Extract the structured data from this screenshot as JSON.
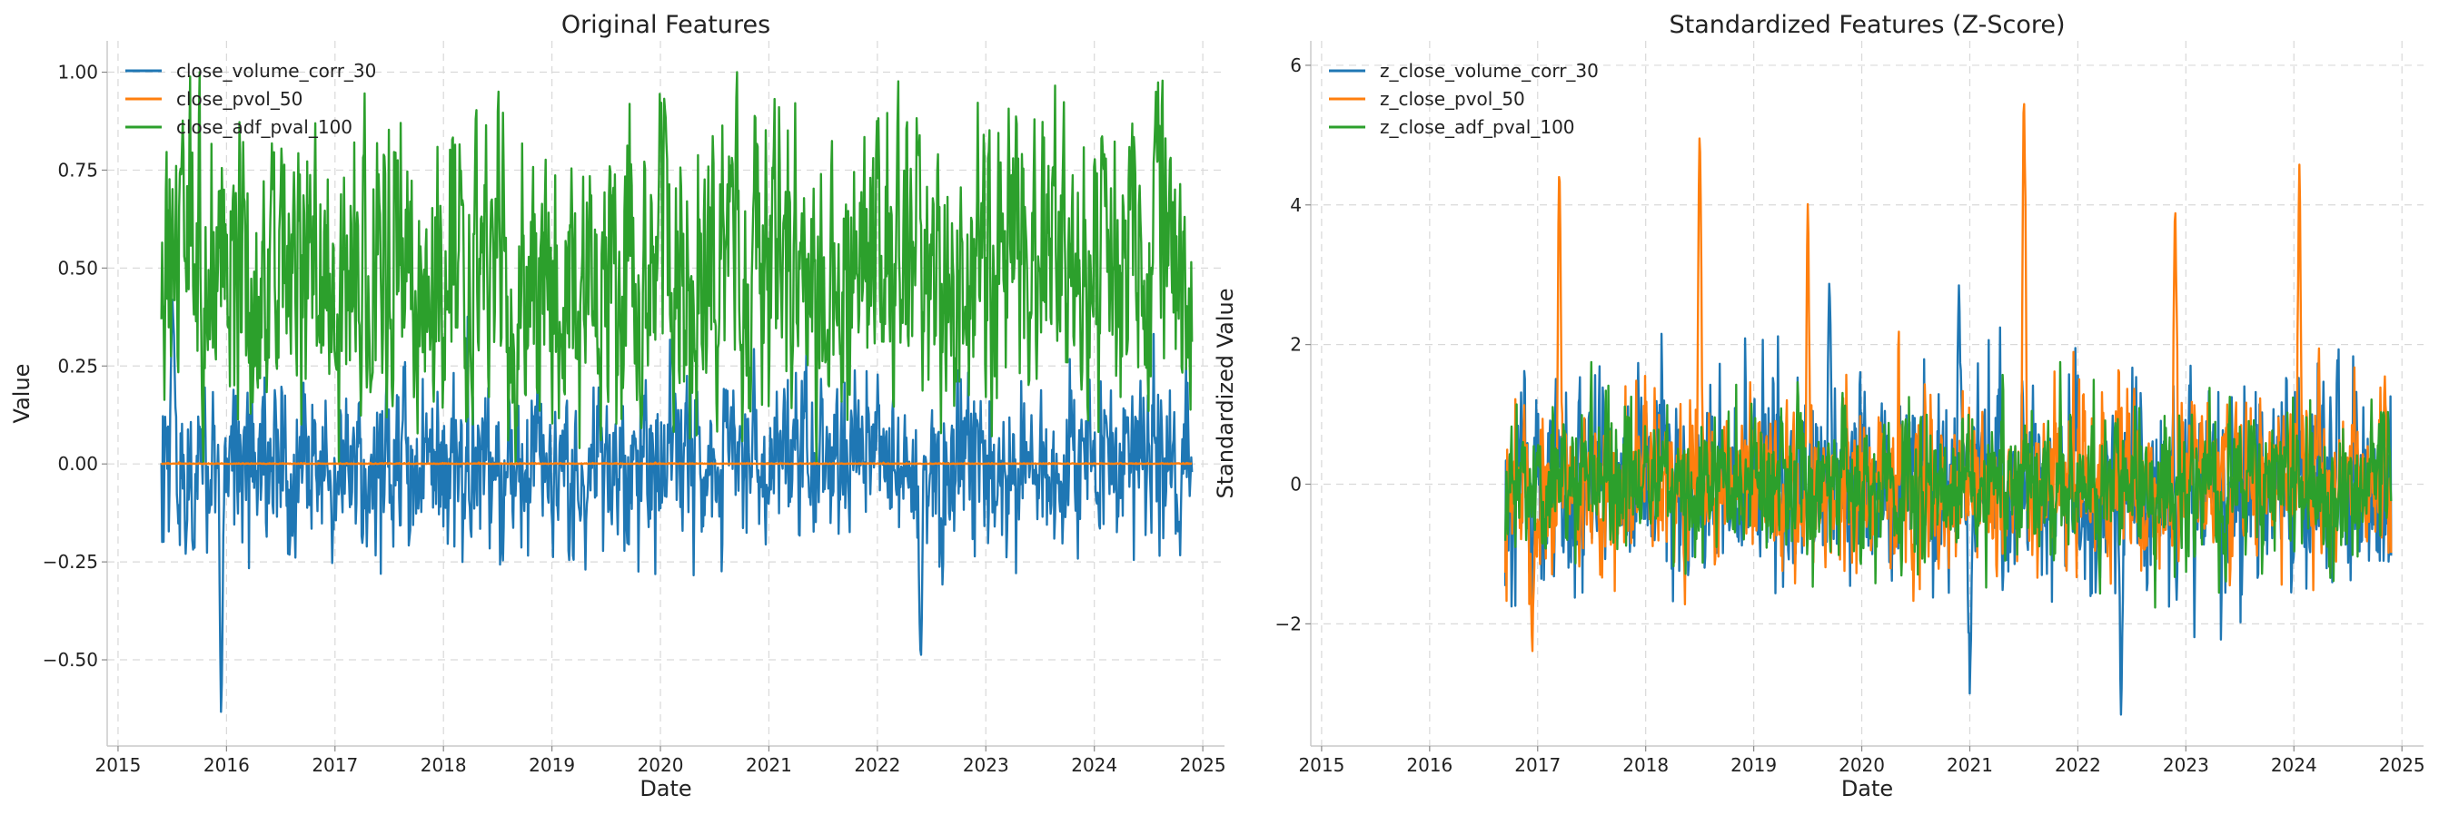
{
  "chart_data": [
    {
      "type": "line",
      "title": "Original Features",
      "xlabel": "Date",
      "ylabel": "Value",
      "xlim": [
        2014.9,
        2025.2
      ],
      "ylim": [
        -0.72,
        1.08
      ],
      "x_ticks": [
        2015,
        2016,
        2017,
        2018,
        2019,
        2020,
        2021,
        2022,
        2023,
        2024,
        2025
      ],
      "x_tick_labels": [
        "2015",
        "2016",
        "2017",
        "2018",
        "2019",
        "2020",
        "2021",
        "2022",
        "2023",
        "2024",
        "2025"
      ],
      "y_ticks": [
        -0.5,
        -0.25,
        0.0,
        0.25,
        0.5,
        0.75,
        1.0
      ],
      "y_tick_labels": [
        "−0.50",
        "−0.25",
        "0.00",
        "0.25",
        "0.50",
        "0.75",
        "1.00"
      ],
      "grid": true,
      "legend": "top-left",
      "date_range": [
        2015.4,
        2024.9
      ],
      "series": [
        {
          "name": "close_volume_corr_30",
          "color": "#1f77b4",
          "mean": 0.0,
          "spread": 0.16,
          "min": -0.64,
          "max": 0.44,
          "peaks": [
            [
              2015.95,
              -0.64
            ],
            [
              2015.5,
              0.44
            ],
            [
              2022.4,
              -0.54
            ]
          ]
        },
        {
          "name": "close_pvol_50",
          "color": "#ff7f0e",
          "mean": 0.0,
          "spread": 0.001,
          "min": 0.0,
          "max": 0.005,
          "peaks": []
        },
        {
          "name": "close_adf_pval_100",
          "color": "#2ca02c",
          "mean": 0.5,
          "spread": 0.3,
          "min": 0.0,
          "max": 1.0,
          "peaks": []
        }
      ]
    },
    {
      "type": "line",
      "title": "Standardized Features (Z-Score)",
      "xlabel": "Date",
      "ylabel": "Standardized Value",
      "xlim": [
        2014.9,
        2025.2
      ],
      "ylim": [
        -3.75,
        6.35
      ],
      "x_ticks": [
        2015,
        2016,
        2017,
        2018,
        2019,
        2020,
        2021,
        2022,
        2023,
        2024,
        2025
      ],
      "x_tick_labels": [
        "2015",
        "2016",
        "2017",
        "2018",
        "2019",
        "2020",
        "2021",
        "2022",
        "2023",
        "2024",
        "2025"
      ],
      "y_ticks": [
        -2,
        0,
        2,
        4,
        6
      ],
      "y_tick_labels": [
        "−2",
        "0",
        "2",
        "4",
        "6"
      ],
      "grid": true,
      "legend": "top-left",
      "date_range": [
        2016.7,
        2024.9
      ],
      "series": [
        {
          "name": "z_close_volume_corr_30",
          "color": "#1f77b4",
          "mean": 0.0,
          "spread": 1.0,
          "min": -3.4,
          "max": 3.3,
          "peaks": [
            [
              2022.4,
              -3.4
            ],
            [
              2021.0,
              -3.05
            ],
            [
              2020.9,
              2.9
            ],
            [
              2019.7,
              2.95
            ]
          ]
        },
        {
          "name": "z_close_pvol_50",
          "color": "#ff7f0e",
          "mean": 0.0,
          "spread": 0.85,
          "min": -2.55,
          "max": 5.9,
          "peaks": [
            [
              2017.2,
              4.75
            ],
            [
              2018.5,
              5.3
            ],
            [
              2019.5,
              4.05
            ],
            [
              2021.5,
              5.9
            ],
            [
              2022.9,
              4.15
            ],
            [
              2024.05,
              4.65
            ],
            [
              2016.95,
              -2.55
            ]
          ]
        },
        {
          "name": "z_close_adf_pval_100",
          "color": "#2ca02c",
          "mean": 0.0,
          "spread": 0.75,
          "min": -2.15,
          "max": 1.75,
          "peaks": []
        }
      ]
    }
  ]
}
